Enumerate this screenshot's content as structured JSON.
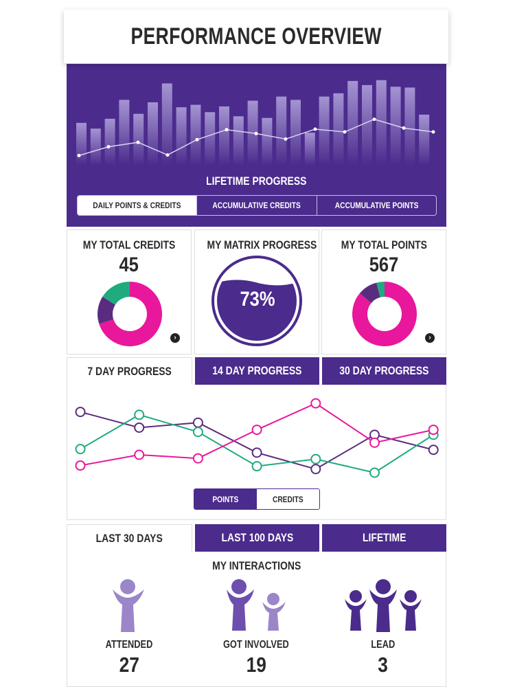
{
  "header": {
    "title": "PERFORMANCE OVERVIEW"
  },
  "lifetime": {
    "title": "LIFETIME PROGRESS",
    "tabs": [
      {
        "label": "DAILY POINTS & CREDITS",
        "active": true
      },
      {
        "label": "ACCUMULATIVE CREDITS",
        "active": false
      },
      {
        "label": "ACCUMULATIVE POINTS",
        "active": false
      }
    ],
    "bars": [
      0.52,
      0.45,
      0.57,
      0.8,
      0.63,
      0.77,
      1.0,
      0.71,
      0.74,
      0.65,
      0.72,
      0.6,
      0.79,
      0.58,
      0.84,
      0.8,
      0.4,
      0.84,
      0.88,
      1.03,
      0.98,
      1.04,
      0.96,
      0.95,
      0.62
    ],
    "line": [
      0.12,
      0.28,
      0.36,
      0.13,
      0.41,
      0.59,
      0.52,
      0.42,
      0.6,
      0.55,
      0.78,
      0.62,
      0.55
    ],
    "bar_color": "#a18fcf",
    "background": "#4b2b8c"
  },
  "cards": [
    {
      "title": "MY TOTAL CREDITS",
      "value": "45",
      "donut": [
        {
          "share": 0.7,
          "color": "#e8179b"
        },
        {
          "share": 0.14,
          "color": "#5a2c7f"
        },
        {
          "share": 0.16,
          "color": "#1fab7f"
        }
      ]
    },
    {
      "title": "MY MATRIX PROGRESS",
      "value": "73%",
      "progress": 0.73
    },
    {
      "title": "MY TOTAL POINTS",
      "value": "567",
      "donut": [
        {
          "share": 0.86,
          "color": "#e8179b"
        },
        {
          "share": 0.1,
          "color": "#5a2c7f"
        },
        {
          "share": 0.04,
          "color": "#1fab7f"
        }
      ]
    }
  ],
  "progress_tabs": [
    {
      "label": "7 DAY PROGRESS",
      "active": true
    },
    {
      "label": "14 DAY PROGRESS",
      "active": false
    },
    {
      "label": "30 DAY PROGRESS",
      "active": false
    }
  ],
  "chart_data": {
    "type": "line",
    "x": [
      1,
      2,
      3,
      4,
      5,
      6,
      7
    ],
    "series": [
      {
        "color": "#5a2c7f",
        "values": [
          0.85,
          0.63,
          0.7,
          0.28,
          0.05,
          0.53,
          0.32
        ]
      },
      {
        "color": "#1fab7f",
        "values": [
          0.33,
          0.81,
          0.57,
          0.09,
          0.19,
          0.0,
          0.53
        ]
      },
      {
        "color": "#e8179b",
        "values": [
          0.1,
          0.25,
          0.2,
          0.6,
          0.97,
          0.42,
          0.6
        ]
      }
    ]
  },
  "chart_toggle": {
    "points_label": "POINTS",
    "credits_label": "CREDITS"
  },
  "range_tabs": [
    {
      "label": "LAST 30 DAYS",
      "active": true
    },
    {
      "label": "LAST 100 DAYS",
      "active": false
    },
    {
      "label": "LIFETIME",
      "active": false
    }
  ],
  "interactions": {
    "title": "MY INTERACTIONS",
    "items": [
      {
        "label": "ATTENDED",
        "value": "27",
        "icon": "person-raised-arms-icon",
        "color": "#9b86c9"
      },
      {
        "label": "GOT INVOLVED",
        "value": "19",
        "icon": "two-people-icon",
        "color": "#6e4fae"
      },
      {
        "label": "LEAD",
        "value": "3",
        "icon": "group-of-three-icon",
        "color": "#4b2b8c"
      }
    ]
  }
}
